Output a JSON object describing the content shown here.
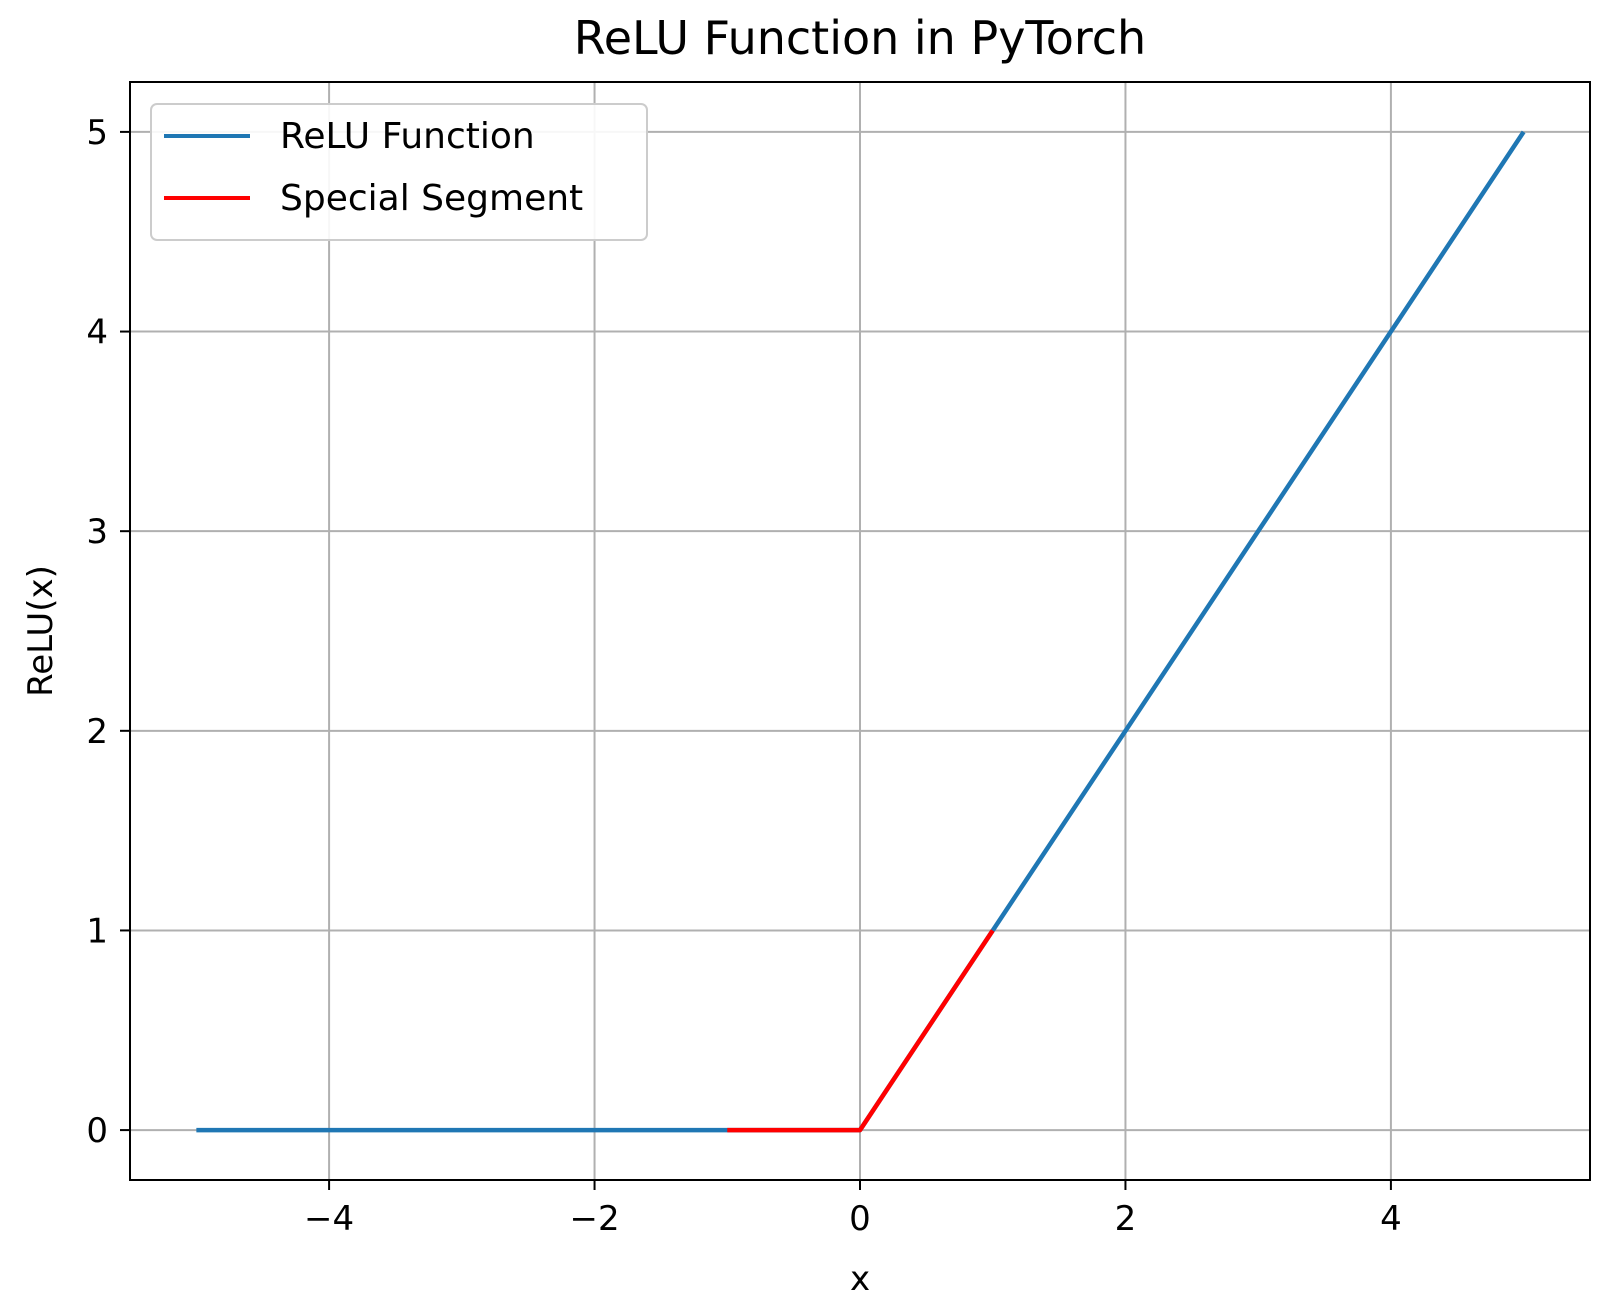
{
  "chart_data": {
    "type": "line",
    "title": "ReLU Function in PyTorch",
    "xlabel": "x",
    "ylabel": "ReLU(x)",
    "xlim": [
      -5.5,
      5.5
    ],
    "ylim": [
      -0.25,
      5.25
    ],
    "xticks": [
      -4,
      -2,
      0,
      2,
      4
    ],
    "xtick_labels": [
      "−4",
      "−2",
      "0",
      "2",
      "4"
    ],
    "yticks": [
      0,
      1,
      2,
      3,
      4,
      5
    ],
    "ytick_labels": [
      "0",
      "1",
      "2",
      "3",
      "4",
      "5"
    ],
    "grid": true,
    "legend_position": "upper-left",
    "series": [
      {
        "name": "ReLU Function",
        "color": "#1f77b4",
        "x": [
          -5,
          -1,
          -0.05,
          0,
          1,
          2,
          3,
          4,
          5
        ],
        "y": [
          0,
          0,
          0,
          0,
          1,
          2,
          3,
          4,
          5
        ]
      },
      {
        "name": "Special Segment",
        "color": "#ff0000",
        "x": [
          -1,
          -0.05,
          0,
          0.05,
          1
        ],
        "y": [
          0,
          0,
          0,
          0.05,
          1
        ]
      }
    ]
  }
}
